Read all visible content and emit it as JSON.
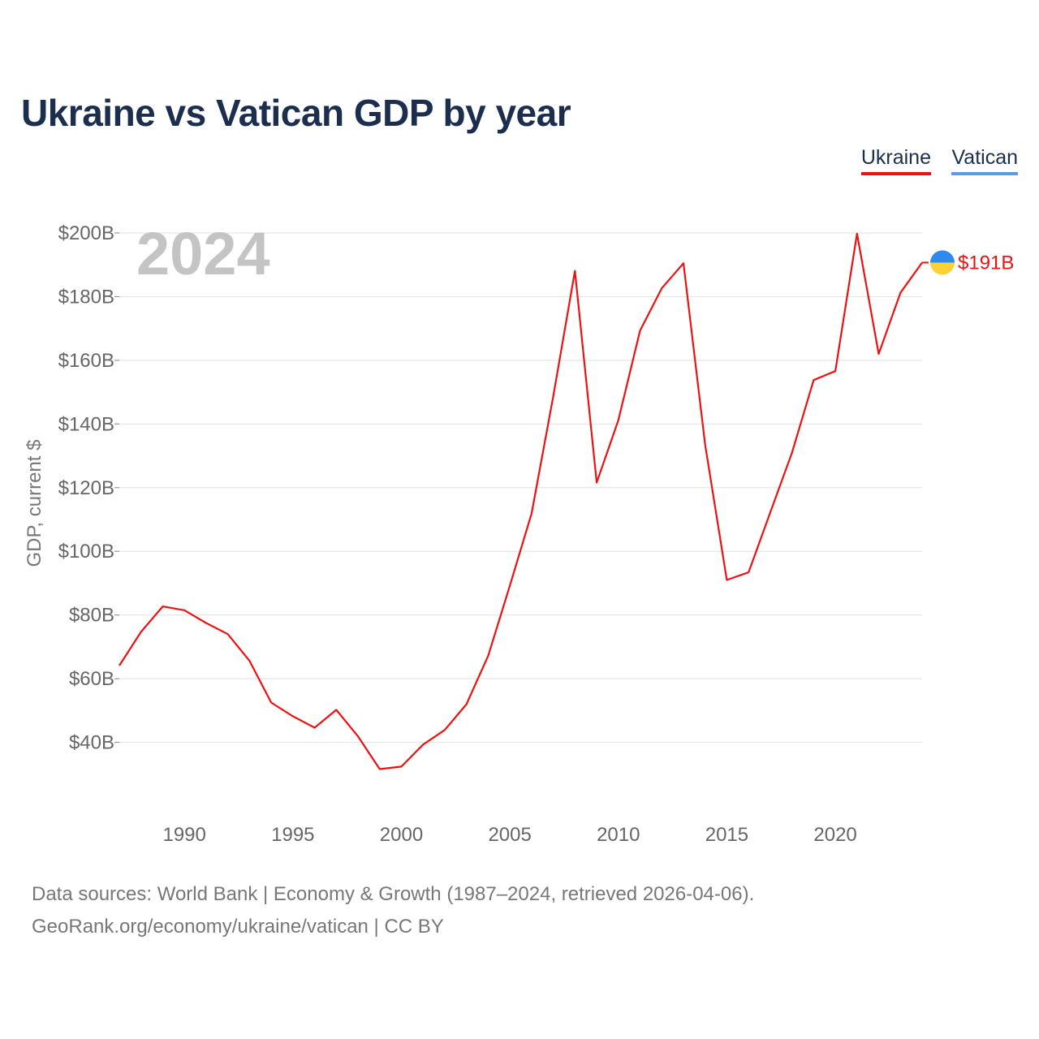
{
  "chart_data": {
    "type": "line",
    "title": "Ukraine vs Vatican GDP by year",
    "ylabel": "GDP, current $",
    "xlabel": "",
    "year_label": "2024",
    "xlim": [
      1987,
      2024
    ],
    "ylim": [
      20,
      200
    ],
    "y_ticks": [
      {
        "value": 200,
        "label": "$200B"
      },
      {
        "value": 180,
        "label": "$180B"
      },
      {
        "value": 160,
        "label": "$160B"
      },
      {
        "value": 140,
        "label": "$140B"
      },
      {
        "value": 120,
        "label": "$120B"
      },
      {
        "value": 100,
        "label": "$100B"
      },
      {
        "value": 80,
        "label": "$80B"
      },
      {
        "value": 60,
        "label": "$60B"
      },
      {
        "value": 40,
        "label": "$40B"
      }
    ],
    "x_ticks": [
      {
        "value": 1990,
        "label": "1990"
      },
      {
        "value": 1995,
        "label": "1995"
      },
      {
        "value": 2000,
        "label": "2000"
      },
      {
        "value": 2005,
        "label": "2005"
      },
      {
        "value": 2010,
        "label": "2010"
      },
      {
        "value": 2015,
        "label": "2015"
      },
      {
        "value": 2020,
        "label": "2020"
      }
    ],
    "legend": [
      "Ukraine",
      "Vatican"
    ],
    "legend_position": "top-right",
    "series": [
      {
        "name": "Ukraine",
        "color": "#ee1111",
        "x": [
          1987,
          1988,
          1989,
          1990,
          1991,
          1992,
          1993,
          1994,
          1995,
          1996,
          1997,
          1998,
          1999,
          2000,
          2001,
          2002,
          2003,
          2004,
          2005,
          2006,
          2007,
          2008,
          2009,
          2010,
          2011,
          2012,
          2013,
          2014,
          2015,
          2016,
          2017,
          2018,
          2019,
          2020,
          2021,
          2022,
          2023,
          2024
        ],
        "values": [
          64.1,
          74.7,
          82.7,
          81.5,
          77.5,
          74.0,
          65.6,
          52.5,
          48.2,
          44.6,
          50.2,
          41.9,
          31.6,
          32.4,
          39.3,
          43.9,
          52.0,
          67.2,
          89.2,
          111.9,
          148.7,
          188.1,
          121.6,
          141.2,
          169.3,
          182.6,
          190.5,
          133.5,
          91.0,
          93.4,
          112.2,
          130.9,
          153.8,
          156.6,
          199.8,
          162.0,
          181.2,
          190.7
        ]
      },
      {
        "name": "Vatican",
        "color": "#5b9be0",
        "x": [],
        "values": []
      }
    ],
    "end_label": "$191B",
    "flag_colors": {
      "top": "#2f8af0",
      "bottom": "#fbd234"
    }
  },
  "footer": {
    "sources": "Data sources: World Bank | Economy & Growth (1987–2024, retrieved 2026-04-06).",
    "credit": "GeoRank.org/economy/ukraine/vatican | CC BY"
  }
}
